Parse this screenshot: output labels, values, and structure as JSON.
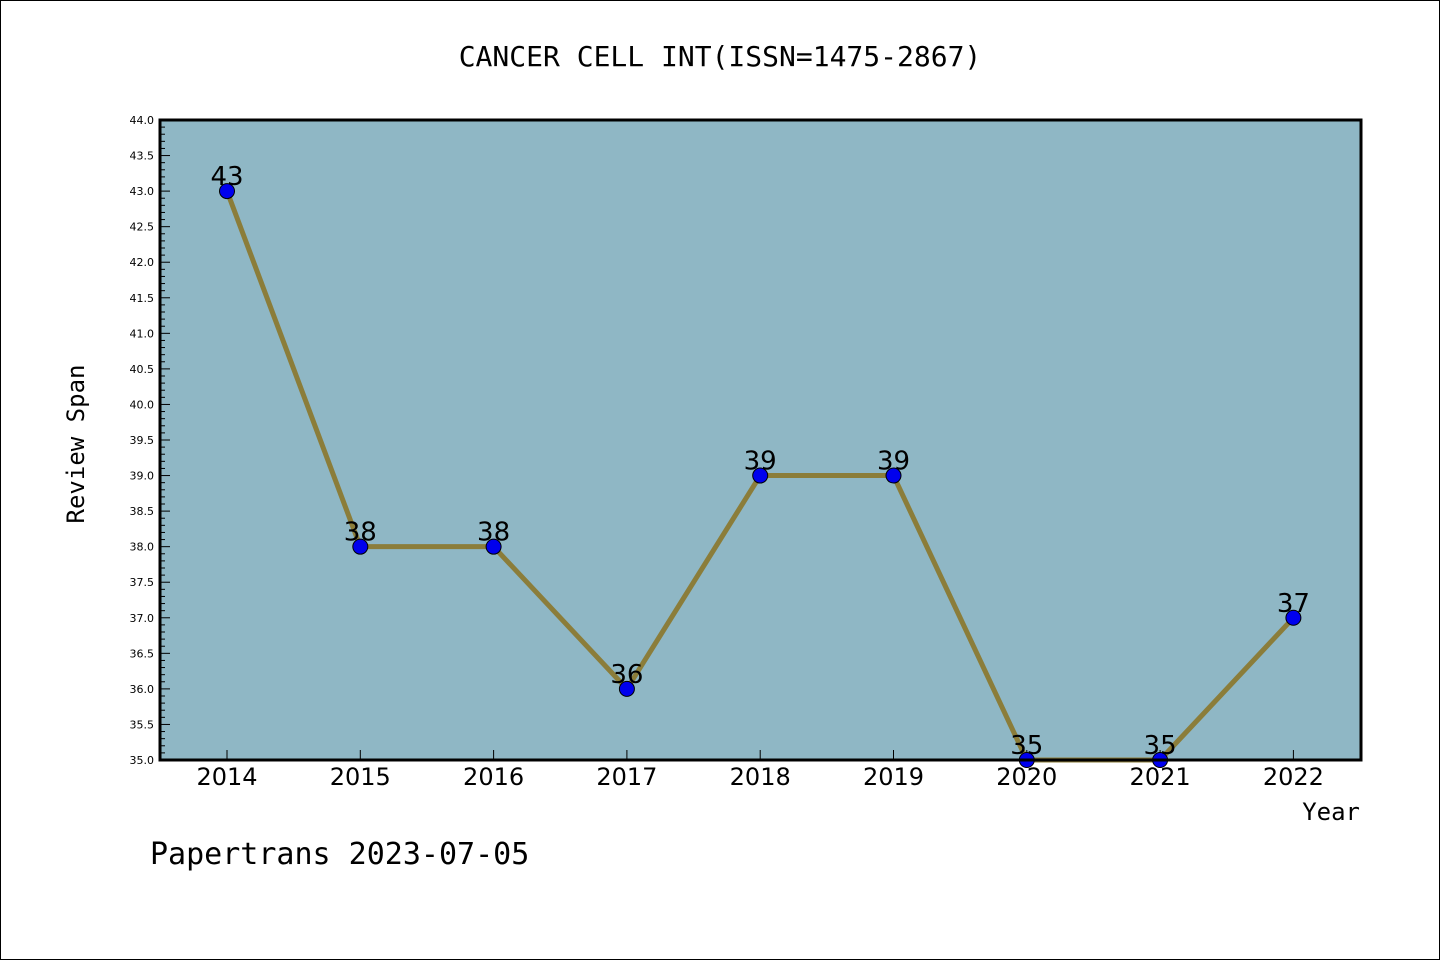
{
  "chart_data": {
    "type": "line",
    "title": "CANCER CELL INT(ISSN=1475-2867)",
    "xlabel": "Year",
    "ylabel": "Review Span",
    "footer": "Papertrans 2023-07-05",
    "categories": [
      "2014",
      "2015",
      "2016",
      "2017",
      "2018",
      "2019",
      "2020",
      "2021",
      "2022"
    ],
    "values": [
      43,
      38,
      38,
      36,
      39,
      39,
      35,
      35,
      37
    ],
    "point_labels": [
      "43",
      "38",
      "38",
      "36",
      "39",
      "39",
      "35",
      "35",
      "37"
    ],
    "y_ticks": [
      "35.0",
      "35.5",
      "36.0",
      "36.5",
      "37.0",
      "37.5",
      "38.0",
      "38.5",
      "39.0",
      "39.5",
      "40.0",
      "40.5",
      "41.0",
      "41.5",
      "42.0",
      "42.5",
      "43.0",
      "43.5",
      "44.0"
    ],
    "ylim": [
      35,
      44
    ],
    "grid": false,
    "legend": "none",
    "colors": {
      "plot_background": "#8fb7c5",
      "line": "#8b7d3a",
      "marker": "#0000ee"
    }
  }
}
